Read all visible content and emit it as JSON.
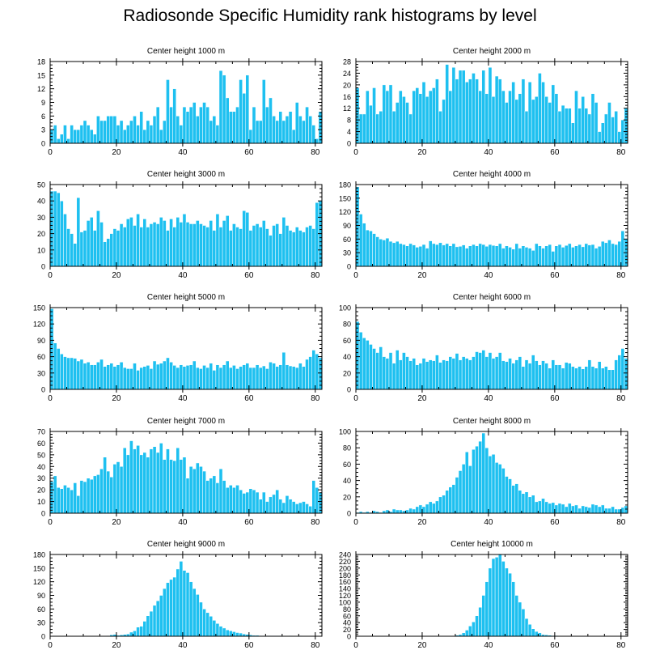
{
  "figure": {
    "title": "Radiosonde Specific Humidity rank histograms by level",
    "bar_color": "#1ec0f0",
    "bar_edge_color": "#ffffff",
    "axis_color": "#000000"
  },
  "chart_data": [
    {
      "type": "bar",
      "title": "Center height 1000 m",
      "xlim": [
        0,
        82
      ],
      "ylim": [
        0,
        18
      ],
      "xticks": [
        0,
        20,
        40,
        60,
        80
      ],
      "yticks": [
        0,
        3,
        6,
        9,
        12,
        15,
        18
      ],
      "x_start": 0,
      "values": [
        3,
        4,
        1,
        2,
        4,
        1,
        4,
        3,
        3,
        4,
        5,
        4,
        3,
        2,
        6,
        5,
        5,
        6,
        6,
        6,
        4,
        5,
        3,
        4,
        5,
        6,
        4,
        7,
        3,
        5,
        4,
        6,
        8,
        3,
        5,
        14,
        8,
        12,
        6,
        4,
        8,
        7,
        8,
        9,
        6,
        8,
        9,
        8,
        5,
        6,
        4,
        16,
        15,
        10,
        7,
        7,
        8,
        14,
        11,
        15,
        3,
        8,
        5,
        5,
        14,
        8,
        10,
        6,
        5,
        7,
        5,
        6,
        7,
        3,
        9,
        6,
        5,
        8,
        6,
        4,
        1,
        7
      ]
    },
    {
      "type": "bar",
      "title": "Center height 2000 m",
      "xlim": [
        0,
        82
      ],
      "ylim": [
        0,
        28
      ],
      "xticks": [
        0,
        20,
        40,
        60,
        80
      ],
      "yticks": [
        0,
        4,
        8,
        12,
        16,
        20,
        24,
        28
      ],
      "x_start": 0,
      "values": [
        19,
        10,
        10,
        18,
        13,
        19,
        10,
        11,
        20,
        18,
        20,
        11,
        14,
        18,
        16,
        14,
        10,
        18,
        19,
        17,
        21,
        16,
        18,
        19,
        22,
        11,
        15,
        27,
        18,
        26,
        22,
        25,
        25,
        21,
        22,
        24,
        22,
        18,
        25,
        17,
        26,
        16,
        23,
        22,
        18,
        14,
        18,
        21,
        15,
        17,
        22,
        11,
        21,
        15,
        16,
        24,
        21,
        16,
        14,
        20,
        17,
        11,
        13,
        12,
        12,
        7,
        18,
        12,
        16,
        12,
        10,
        17,
        14,
        4,
        7,
        10,
        14,
        9,
        11,
        4,
        8,
        12
      ]
    },
    {
      "type": "bar",
      "title": "Center height 3000 m",
      "xlim": [
        0,
        82
      ],
      "ylim": [
        0,
        50
      ],
      "xticks": [
        0,
        20,
        40,
        60,
        80
      ],
      "yticks": [
        0,
        10,
        20,
        30,
        40,
        50
      ],
      "x_start": 0,
      "values": [
        46,
        46,
        45,
        40,
        32,
        23,
        20,
        14,
        42,
        21,
        22,
        28,
        30,
        22,
        34,
        27,
        15,
        17,
        20,
        23,
        22,
        26,
        24,
        29,
        30,
        25,
        32,
        24,
        29,
        24,
        26,
        27,
        26,
        30,
        28,
        22,
        29,
        24,
        30,
        27,
        32,
        27,
        26,
        26,
        28,
        26,
        25,
        24,
        28,
        22,
        32,
        24,
        28,
        31,
        22,
        26,
        24,
        23,
        34,
        33,
        22,
        25,
        26,
        24,
        28,
        23,
        19,
        25,
        26,
        20,
        30,
        25,
        22,
        21,
        24,
        22,
        21,
        24,
        25,
        23,
        39,
        40
      ]
    },
    {
      "type": "bar",
      "title": "Center height 4000 m",
      "xlim": [
        0,
        82
      ],
      "ylim": [
        0,
        180
      ],
      "xticks": [
        0,
        20,
        40,
        60,
        80
      ],
      "yticks": [
        0,
        30,
        60,
        90,
        120,
        150,
        180
      ],
      "x_start": 0,
      "values": [
        175,
        115,
        95,
        80,
        78,
        72,
        65,
        60,
        58,
        62,
        55,
        52,
        55,
        50,
        48,
        45,
        50,
        47,
        42,
        44,
        48,
        40,
        56,
        50,
        48,
        52,
        47,
        50,
        45,
        50,
        43,
        44,
        47,
        40,
        45,
        48,
        45,
        50,
        48,
        44,
        48,
        46,
        45,
        50,
        40,
        45,
        42,
        38,
        50,
        40,
        45,
        42,
        40,
        35,
        50,
        45,
        40,
        45,
        48,
        33,
        45,
        48,
        42,
        46,
        50,
        42,
        45,
        48,
        43,
        50,
        47,
        48,
        40,
        44,
        55,
        52,
        58,
        50,
        48,
        55,
        78,
        60
      ]
    },
    {
      "type": "bar",
      "title": "Center height 5000 m",
      "xlim": [
        0,
        82
      ],
      "ylim": [
        0,
        150
      ],
      "xticks": [
        0,
        20,
        40,
        60,
        80
      ],
      "yticks": [
        0,
        30,
        60,
        90,
        120,
        150
      ],
      "x_start": 0,
      "values": [
        148,
        85,
        75,
        65,
        60,
        58,
        58,
        57,
        52,
        55,
        48,
        50,
        45,
        45,
        50,
        55,
        42,
        45,
        48,
        42,
        45,
        50,
        40,
        38,
        38,
        48,
        35,
        40,
        42,
        44,
        38,
        52,
        46,
        48,
        52,
        58,
        50,
        44,
        40,
        45,
        42,
        44,
        45,
        52,
        40,
        38,
        44,
        40,
        48,
        35,
        45,
        40,
        45,
        52,
        40,
        44,
        38,
        42,
        45,
        48,
        40,
        40,
        45,
        40,
        43,
        38,
        50,
        48,
        42,
        45,
        68,
        45,
        43,
        42,
        40,
        48,
        42,
        55,
        60,
        72,
        65,
        58
      ]
    },
    {
      "type": "bar",
      "title": "Center height 6000 m",
      "xlim": [
        0,
        82
      ],
      "ylim": [
        0,
        100
      ],
      "xticks": [
        0,
        20,
        40,
        60,
        80
      ],
      "yticks": [
        0,
        20,
        40,
        60,
        80,
        100
      ],
      "x_start": 0,
      "values": [
        83,
        70,
        63,
        60,
        55,
        50,
        45,
        52,
        40,
        38,
        45,
        32,
        48,
        36,
        45,
        40,
        35,
        38,
        30,
        32,
        38,
        34,
        36,
        35,
        42,
        33,
        36,
        35,
        40,
        38,
        44,
        36,
        40,
        38,
        36,
        40,
        46,
        45,
        48,
        40,
        45,
        38,
        40,
        45,
        35,
        34,
        38,
        32,
        36,
        40,
        28,
        36,
        32,
        42,
        35,
        30,
        35,
        32,
        26,
        36,
        30,
        30,
        26,
        33,
        32,
        28,
        26,
        28,
        25,
        28,
        36,
        28,
        26,
        34,
        26,
        28,
        24,
        24,
        36,
        42,
        50,
        38
      ]
    },
    {
      "type": "bar",
      "title": "Center height 7000 m",
      "xlim": [
        0,
        82
      ],
      "ylim": [
        0,
        70
      ],
      "xticks": [
        0,
        20,
        40,
        60,
        80
      ],
      "yticks": [
        0,
        10,
        20,
        30,
        40,
        50,
        60,
        70
      ],
      "x_start": 0,
      "values": [
        27,
        32,
        22,
        21,
        24,
        22,
        20,
        26,
        15,
        28,
        27,
        30,
        29,
        32,
        33,
        38,
        48,
        36,
        31,
        42,
        44,
        40,
        56,
        50,
        62,
        55,
        58,
        50,
        52,
        48,
        55,
        57,
        52,
        60,
        46,
        55,
        46,
        45,
        56,
        46,
        48,
        30,
        40,
        38,
        43,
        40,
        36,
        28,
        30,
        32,
        26,
        38,
        28,
        22,
        24,
        22,
        24,
        20,
        17,
        18,
        21,
        20,
        18,
        12,
        18,
        10,
        14,
        16,
        20,
        12,
        9,
        15,
        12,
        10,
        8,
        9,
        10,
        8,
        6,
        28,
        22,
        18
      ]
    },
    {
      "type": "bar",
      "title": "Center height 8000 m",
      "xlim": [
        0,
        82
      ],
      "ylim": [
        0,
        100
      ],
      "xticks": [
        0,
        20,
        40,
        60,
        80
      ],
      "yticks": [
        0,
        20,
        40,
        60,
        80,
        100
      ],
      "x_start": 0,
      "values": [
        1,
        2,
        1,
        2,
        1,
        3,
        2,
        1,
        3,
        4,
        2,
        5,
        4,
        4,
        3,
        4,
        6,
        5,
        8,
        10,
        8,
        11,
        14,
        12,
        15,
        20,
        22,
        28,
        32,
        35,
        44,
        52,
        60,
        75,
        58,
        78,
        82,
        88,
        98,
        80,
        70,
        72,
        62,
        60,
        55,
        45,
        42,
        34,
        36,
        28,
        24,
        26,
        20,
        22,
        14,
        15,
        18,
        14,
        12,
        13,
        10,
        12,
        11,
        8,
        12,
        9,
        10,
        6,
        9,
        8,
        7,
        11,
        10,
        8,
        10,
        6,
        6,
        8,
        5,
        5,
        7,
        9
      ]
    },
    {
      "type": "bar",
      "title": "Center height 9000 m",
      "xlim": [
        0,
        82
      ],
      "ylim": [
        0,
        180
      ],
      "xticks": [
        0,
        20,
        40,
        60,
        80
      ],
      "yticks": [
        0,
        30,
        60,
        90,
        120,
        150,
        180
      ],
      "x_start": 0,
      "values": [
        0,
        0,
        0,
        0,
        0,
        0,
        0,
        0,
        0,
        0,
        0,
        0,
        0,
        0,
        0,
        0,
        0,
        1,
        3,
        4,
        2,
        3,
        4,
        5,
        9,
        12,
        20,
        22,
        33,
        45,
        55,
        68,
        78,
        90,
        105,
        118,
        125,
        130,
        148,
        165,
        145,
        140,
        120,
        105,
        92,
        75,
        60,
        52,
        44,
        35,
        28,
        22,
        18,
        14,
        12,
        10,
        8,
        7,
        5,
        4,
        3,
        2,
        2,
        1,
        1,
        1,
        1,
        1,
        1,
        1,
        0,
        0,
        1,
        0,
        0,
        1,
        0,
        0,
        0,
        0,
        0,
        0
      ]
    },
    {
      "type": "bar",
      "title": "Center height 10000 m",
      "xlim": [
        0,
        82
      ],
      "ylim": [
        0,
        240
      ],
      "xticks": [
        0,
        20,
        40,
        60,
        80
      ],
      "yticks": [
        0,
        20,
        40,
        60,
        80,
        100,
        120,
        140,
        160,
        180,
        200,
        220,
        240
      ],
      "x_start": 0,
      "values": [
        0,
        0,
        0,
        0,
        0,
        0,
        0,
        0,
        0,
        0,
        0,
        0,
        0,
        0,
        0,
        0,
        0,
        0,
        0,
        0,
        0,
        0,
        0,
        0,
        0,
        0,
        0,
        0,
        0,
        1,
        3,
        5,
        10,
        18,
        30,
        42,
        60,
        85,
        120,
        160,
        200,
        228,
        232,
        240,
        220,
        200,
        185,
        160,
        120,
        100,
        80,
        52,
        35,
        22,
        14,
        10,
        5,
        4,
        3,
        2,
        2,
        1,
        1,
        0,
        0,
        0,
        0,
        0,
        0,
        0,
        0,
        0,
        0,
        0,
        0,
        0,
        0,
        0,
        0,
        0,
        0,
        0
      ]
    }
  ]
}
